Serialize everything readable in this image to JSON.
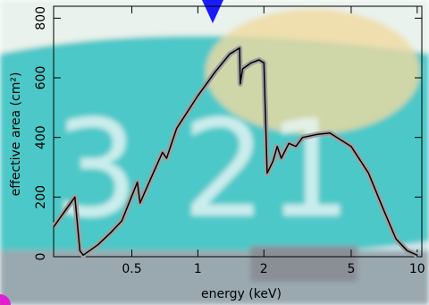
{
  "chart_data": {
    "type": "line",
    "x_label": "energy (keV)",
    "y_label": "effective area (cm²)",
    "x": [
      0.22,
      0.275,
      0.29,
      0.3,
      0.35,
      0.4,
      0.45,
      0.53,
      0.545,
      0.6,
      0.69,
      0.72,
      0.8,
      1.0,
      1.2,
      1.4,
      1.55,
      1.56,
      1.6,
      1.75,
      1.9,
      2.0,
      2.07,
      2.2,
      2.3,
      2.4,
      2.6,
      2.8,
      3.0,
      3.5,
      4.0,
      5.0,
      6.0,
      7.0,
      8.0,
      9.0,
      10.0
    ],
    "series": [
      {
        "color": "#000000",
        "band_color": "#a0a0a0",
        "values": [
          100,
          200,
          20,
          5,
          40,
          80,
          120,
          250,
          180,
          250,
          350,
          330,
          430,
          540,
          620,
          680,
          700,
          580,
          630,
          650,
          660,
          650,
          280,
          320,
          370,
          330,
          380,
          370,
          400,
          410,
          415,
          370,
          280,
          160,
          60,
          20,
          5
        ]
      }
    ],
    "xscale": "log",
    "xlim": [
      0.22,
      10.5
    ],
    "xticks": [
      0.5,
      1,
      2,
      5,
      10
    ],
    "ylim": [
      0,
      840
    ],
    "yticks": [
      0,
      200,
      400,
      600,
      800
    ]
  }
}
